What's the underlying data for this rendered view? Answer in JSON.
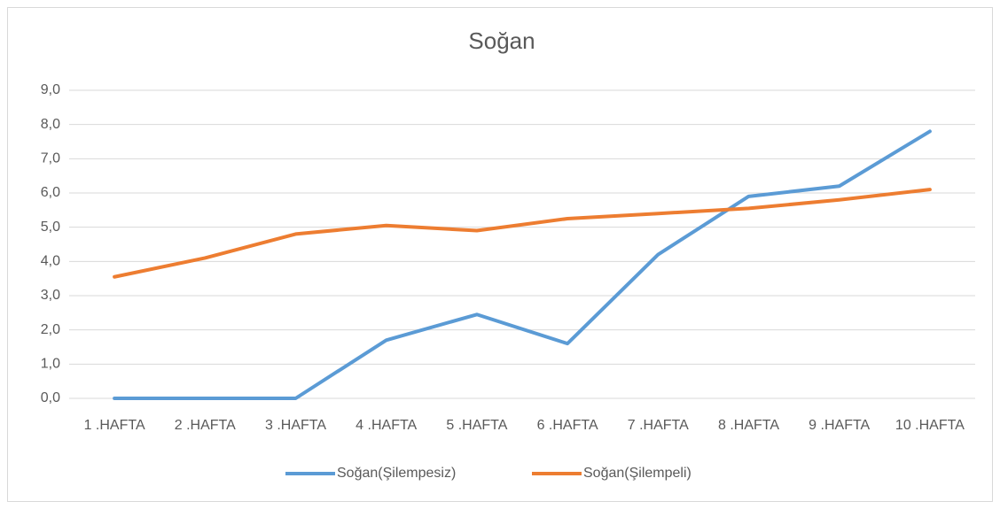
{
  "chart_data": {
    "type": "line",
    "title": "Soğan",
    "categories": [
      "1 .HAFTA",
      "2 .HAFTA",
      "3 .HAFTA",
      "4 .HAFTA",
      "5 .HAFTA",
      "6 .HAFTA",
      "7 .HAFTA",
      "8 .HAFTA",
      "9 .HAFTA",
      "10 .HAFTA"
    ],
    "series": [
      {
        "name": "Soğan(Şilempesiz)",
        "color": "#5b9bd5",
        "values": [
          0,
          0,
          0,
          1.7,
          2.45,
          1.6,
          4.2,
          5.9,
          6.2,
          7.8
        ]
      },
      {
        "name": "Soğan(Şilempeli)",
        "color": "#ed7d31",
        "values": [
          3.55,
          4.1,
          4.8,
          5.05,
          4.9,
          5.25,
          5.4,
          5.55,
          5.8,
          6.1
        ]
      }
    ],
    "ylim": [
      0,
      9
    ],
    "yticks": [
      {
        "value": 0,
        "label": "0,0"
      },
      {
        "value": 1,
        "label": "1,0"
      },
      {
        "value": 2,
        "label": "2,0"
      },
      {
        "value": 3,
        "label": "3,0"
      },
      {
        "value": 4,
        "label": "4,0"
      },
      {
        "value": 5,
        "label": "5,0"
      },
      {
        "value": 6,
        "label": "6,0"
      },
      {
        "value": 7,
        "label": "7,0"
      },
      {
        "value": 8,
        "label": "8,0"
      },
      {
        "value": 9,
        "label": "9,0"
      }
    ],
    "grid": true,
    "legend": "bottom"
  }
}
